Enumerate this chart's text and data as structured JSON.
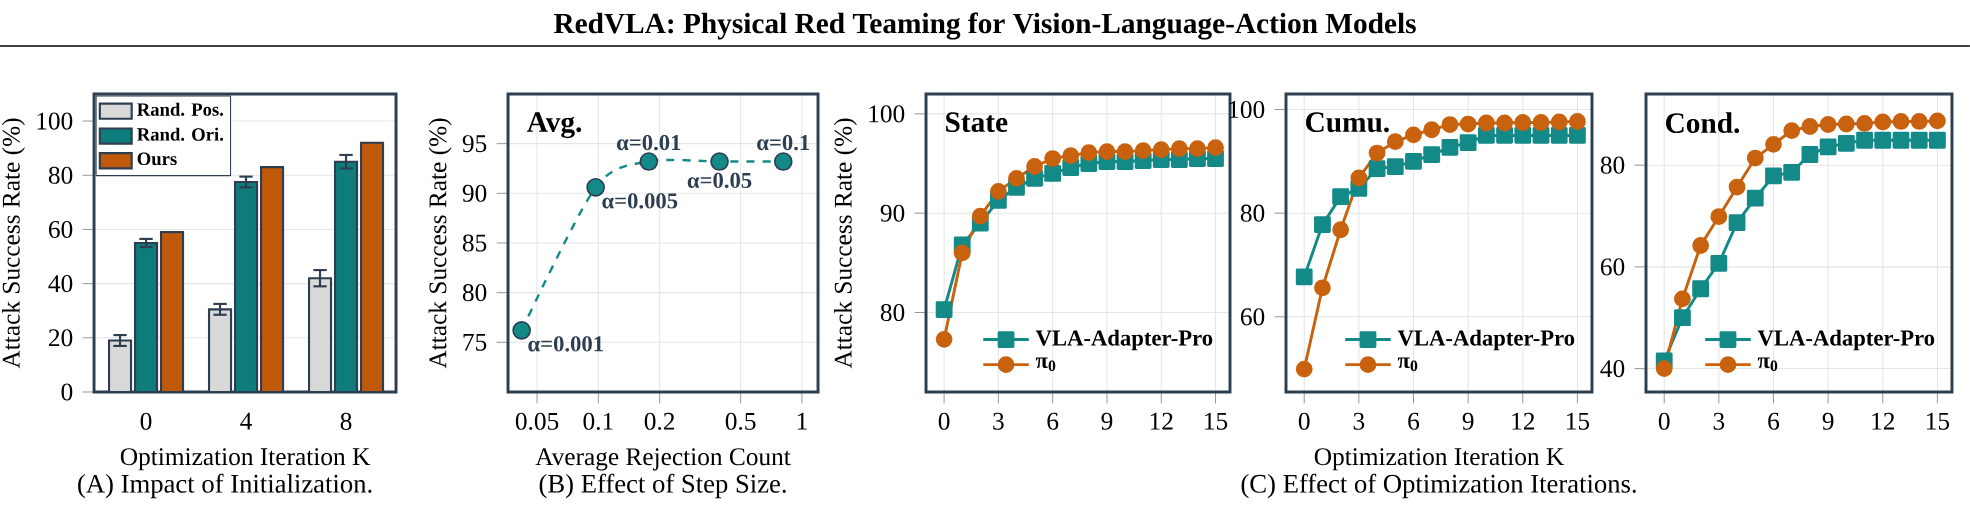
{
  "chart_data": [
    {
      "type": "other",
      "title": "RedVLA: Physical Red Teaming for Vision-Language-Action Models"
    },
    {
      "type": "bar",
      "xlabel": "Optimization Iteration K",
      "ylabel": "Attack Success Rate (%)",
      "annotations": [
        "(A) Impact of Initialization."
      ],
      "categories": [
        "0",
        "4",
        "8"
      ],
      "series": [
        {
          "name": "Rand. Pos.",
          "color": "#d9d9d9",
          "values": [
            19,
            30.5,
            42
          ],
          "errors": [
            2,
            2,
            3
          ]
        },
        {
          "name": "Rand. Ori.",
          "color": "#0e7c7b",
          "values": [
            55,
            77.5,
            85
          ],
          "errors": [
            1.5,
            2,
            2.5
          ]
        },
        {
          "name": "Ours",
          "color": "#c05a0a",
          "values": [
            59,
            83,
            92
          ]
        }
      ],
      "ylim": [
        0,
        110
      ],
      "yticks": [
        0,
        20,
        40,
        60,
        80,
        100
      ],
      "grid": "y",
      "legend": "top left"
    },
    {
      "type": "line",
      "title": "Avg.",
      "xlabel": "Average Rejection Count",
      "ylabel": "Attack Success Rate (%)",
      "log": "x",
      "x": [
        0.042,
        0.097,
        0.177,
        0.394,
        0.81
      ],
      "series": [
        {
          "color": "#138a87",
          "values": [
            76.2,
            90.6,
            93.2,
            93.2,
            93.2
          ],
          "marker": "circle",
          "line_style": "dashed"
        }
      ],
      "annotations": [
        "(B) Effect of Step Size.",
        {
          "text": "α=0.001",
          "x": 0.042,
          "y": 76.2
        },
        {
          "text": "α=0.005",
          "x": 0.097,
          "y": 90.6
        },
        {
          "text": "α=0.01",
          "x": 0.177,
          "y": 93.2
        },
        {
          "text": "α=0.05",
          "x": 0.394,
          "y": 93.2
        },
        {
          "text": "α=0.1",
          "x": 0.81,
          "y": 93.2
        }
      ],
      "xlim": [
        0.036,
        1.2
      ],
      "xticks": [
        0.05,
        0.1,
        0.2,
        0.5,
        1
      ],
      "ylim": [
        70,
        100
      ],
      "yticks": [
        75,
        80,
        85,
        90,
        95
      ],
      "grid": true
    },
    {
      "type": "line",
      "title": "State",
      "ylabel": "Attack Success Rate (%)",
      "x": [
        0,
        1,
        2,
        3,
        4,
        5,
        6,
        7,
        8,
        9,
        10,
        11,
        12,
        13,
        14,
        15
      ],
      "series": [
        {
          "name": "VLA-Adapter-Pro",
          "color": "#138a87",
          "marker": "square",
          "values": [
            80.3,
            86.8,
            89,
            91.3,
            92.6,
            93.5,
            94,
            94.6,
            95,
            95.2,
            95.2,
            95.3,
            95.4,
            95.4,
            95.5,
            95.5
          ]
        },
        {
          "name": "π$_{0}$",
          "color": "#c8620e",
          "marker": "circle",
          "values": [
            77.3,
            86,
            89.7,
            92.2,
            93.5,
            94.7,
            95.5,
            95.8,
            96.1,
            96.2,
            96.2,
            96.3,
            96.4,
            96.5,
            96.5,
            96.6
          ]
        }
      ],
      "xlim": [
        -1,
        15.8
      ],
      "xticks": [
        0,
        3,
        6,
        9,
        12,
        15
      ],
      "ylim": [
        72,
        102
      ],
      "yticks": [
        80,
        90,
        100
      ],
      "grid": true,
      "legend": "bottom right"
    },
    {
      "type": "line",
      "title": "Cumu.",
      "xlabel": "Optimization Iteration K",
      "annotations": [
        "(C) Effect of Optimization Iterations."
      ],
      "x": [
        0,
        1,
        2,
        3,
        4,
        5,
        6,
        7,
        8,
        9,
        10,
        11,
        12,
        13,
        14,
        15
      ],
      "series": [
        {
          "name": "VLA-Adapter-Pro",
          "color": "#138a87",
          "marker": "square",
          "values": [
            67.7,
            77.8,
            83.2,
            84.8,
            88.6,
            89,
            90,
            91.3,
            92.7,
            93.6,
            95,
            95,
            95,
            95,
            95,
            95
          ]
        },
        {
          "name": "π$_{0}$",
          "color": "#c8620e",
          "marker": "circle",
          "values": [
            49.9,
            65.6,
            76.8,
            86.8,
            91.6,
            93.8,
            95.1,
            96.1,
            97.1,
            97.2,
            97.4,
            97.4,
            97.5,
            97.5,
            97.6,
            97.7
          ]
        }
      ],
      "xlim": [
        -1,
        15.8
      ],
      "xticks": [
        0,
        3,
        6,
        9,
        12,
        15
      ],
      "ylim": [
        45.5,
        103
      ],
      "yticks": [
        60,
        80,
        100
      ],
      "grid": true,
      "legend": "bottom right"
    },
    {
      "type": "line",
      "title": "Cond.",
      "x": [
        0,
        1,
        2,
        3,
        4,
        5,
        6,
        7,
        8,
        9,
        10,
        11,
        12,
        13,
        14,
        15
      ],
      "series": [
        {
          "name": "VLA-Adapter-Pro",
          "color": "#138a87",
          "marker": "square",
          "values": [
            41.5,
            50,
            55.7,
            60.7,
            68.7,
            73.5,
            77.9,
            78.6,
            82.1,
            83.6,
            84.3,
            84.9,
            84.9,
            84.9,
            84.9,
            84.9
          ]
        },
        {
          "name": "π$_{0}$",
          "color": "#c8620e",
          "marker": "circle",
          "values": [
            40,
            53.7,
            64.2,
            69.9,
            75.7,
            81.4,
            84.1,
            86.8,
            87.6,
            88,
            88.1,
            88.2,
            88.5,
            88.6,
            88.6,
            88.7
          ]
        }
      ],
      "xlim": [
        -1,
        15.8
      ],
      "xticks": [
        0,
        3,
        6,
        9,
        12,
        15
      ],
      "ylim": [
        35.4,
        94
      ],
      "yticks": [
        40,
        60,
        80
      ],
      "grid": true,
      "legend": "bottom right"
    }
  ]
}
